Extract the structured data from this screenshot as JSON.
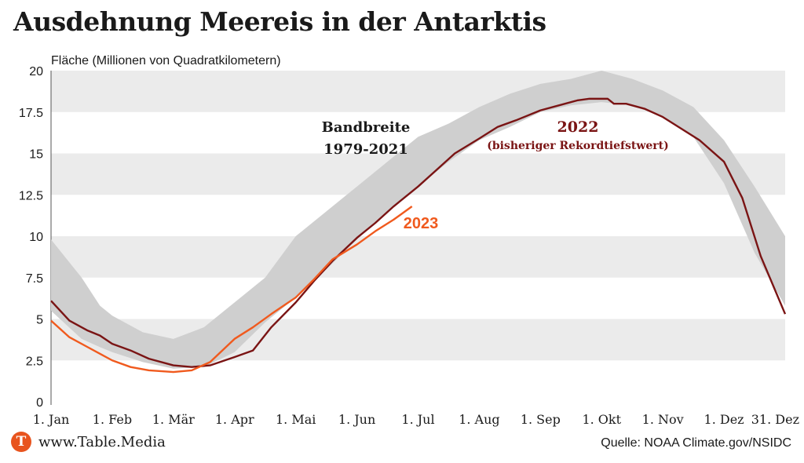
{
  "title": "Ausdehnung Meereis in der Antarktis",
  "footer": {
    "logo_letter": "T",
    "site": "www.Table.Media",
    "source": "Quelle: NOAA Climate.gov/NSIDC"
  },
  "colors": {
    "band": "#cfcfcf",
    "stripe": "#ebebeb",
    "line_2022": "#7a1414",
    "line_2023": "#f05a1e",
    "logo": "#e8541e"
  },
  "chart_data": {
    "type": "line",
    "ylabel": "Fläche (Millionen von Quadratkilometern)",
    "xlabel": "",
    "ylim": [
      0,
      20
    ],
    "xlim": [
      0,
      12
    ],
    "yticks": [
      "0",
      "2.5",
      "5",
      "7.5",
      "10",
      "12.5",
      "15",
      "17.5",
      "20"
    ],
    "ytick_values": [
      0,
      2.5,
      5,
      7.5,
      10,
      12.5,
      15,
      17.5,
      20
    ],
    "xticks": [
      "1. Jan",
      "1. Feb",
      "1. Mär",
      "1. Apr",
      "1. Mai",
      "1. Jun",
      "1. Jul",
      "1. Aug",
      "1. Sep",
      "1. Okt",
      "1. Nov",
      "1. Dez",
      "31. Dez"
    ],
    "xtick_values": [
      0,
      1,
      2,
      3,
      4,
      5,
      6,
      7,
      8,
      9,
      10,
      11,
      12
    ],
    "x_unit": "months since 1. Jan",
    "band": {
      "label_line1": "Bandbreite",
      "label_line2": "1979-2021",
      "x": [
        0,
        0.5,
        0.8,
        1.0,
        1.5,
        2.0,
        2.5,
        3.0,
        3.5,
        4.0,
        4.5,
        5.0,
        5.5,
        6.0,
        6.5,
        7.0,
        7.5,
        8.0,
        8.5,
        9.0,
        9.5,
        10.0,
        10.5,
        11.0,
        11.5,
        12.0
      ],
      "upper": [
        9.8,
        7.5,
        5.8,
        5.2,
        4.2,
        3.8,
        4.5,
        6.0,
        7.5,
        10.0,
        11.5,
        13.0,
        14.5,
        16.0,
        16.8,
        17.8,
        18.6,
        19.2,
        19.5,
        20.0,
        19.5,
        18.8,
        17.8,
        15.8,
        13.0,
        10.0
      ],
      "lower": [
        5.5,
        3.8,
        3.3,
        3.0,
        2.4,
        2.0,
        2.1,
        3.0,
        4.8,
        6.3,
        8.0,
        9.8,
        11.5,
        13.0,
        14.5,
        15.8,
        16.6,
        17.5,
        17.9,
        18.1,
        17.9,
        17.2,
        16.0,
        13.2,
        9.0,
        5.8
      ]
    },
    "series": [
      {
        "name": "2022",
        "label_line1": "2022",
        "label_line2": "(bisheriger Rekordtiefstwert)",
        "x": [
          0,
          0.3,
          0.6,
          0.8,
          1.0,
          1.3,
          1.6,
          2.0,
          2.3,
          2.6,
          3.0,
          3.3,
          3.6,
          4.0,
          4.3,
          4.6,
          5.0,
          5.3,
          5.6,
          6.0,
          6.3,
          6.6,
          7.0,
          7.3,
          7.6,
          8.0,
          8.3,
          8.6,
          8.8,
          9.0,
          9.1,
          9.2,
          9.4,
          9.7,
          10.0,
          10.3,
          10.6,
          11.0,
          11.3,
          11.6,
          12.0
        ],
        "values": [
          6.1,
          4.9,
          4.3,
          4.0,
          3.5,
          3.1,
          2.6,
          2.2,
          2.1,
          2.2,
          2.7,
          3.1,
          4.5,
          6.0,
          7.3,
          8.5,
          9.9,
          10.8,
          11.8,
          13.0,
          14.0,
          15.0,
          15.9,
          16.6,
          17.0,
          17.6,
          17.9,
          18.2,
          18.3,
          18.3,
          18.3,
          18.0,
          18.0,
          17.7,
          17.2,
          16.5,
          15.8,
          14.5,
          12.3,
          8.8,
          5.3
        ]
      },
      {
        "name": "2023",
        "label_line1": "2023",
        "x": [
          0,
          0.3,
          0.6,
          0.8,
          1.0,
          1.3,
          1.6,
          2.0,
          2.3,
          2.6,
          3.0,
          3.3,
          3.6,
          4.0,
          4.3,
          4.6,
          5.0,
          5.3,
          5.6,
          5.9
        ],
        "values": [
          4.9,
          3.9,
          3.3,
          2.9,
          2.5,
          2.1,
          1.9,
          1.8,
          1.9,
          2.4,
          3.8,
          4.5,
          5.3,
          6.3,
          7.4,
          8.6,
          9.5,
          10.3,
          11.0,
          11.8
        ]
      }
    ]
  }
}
